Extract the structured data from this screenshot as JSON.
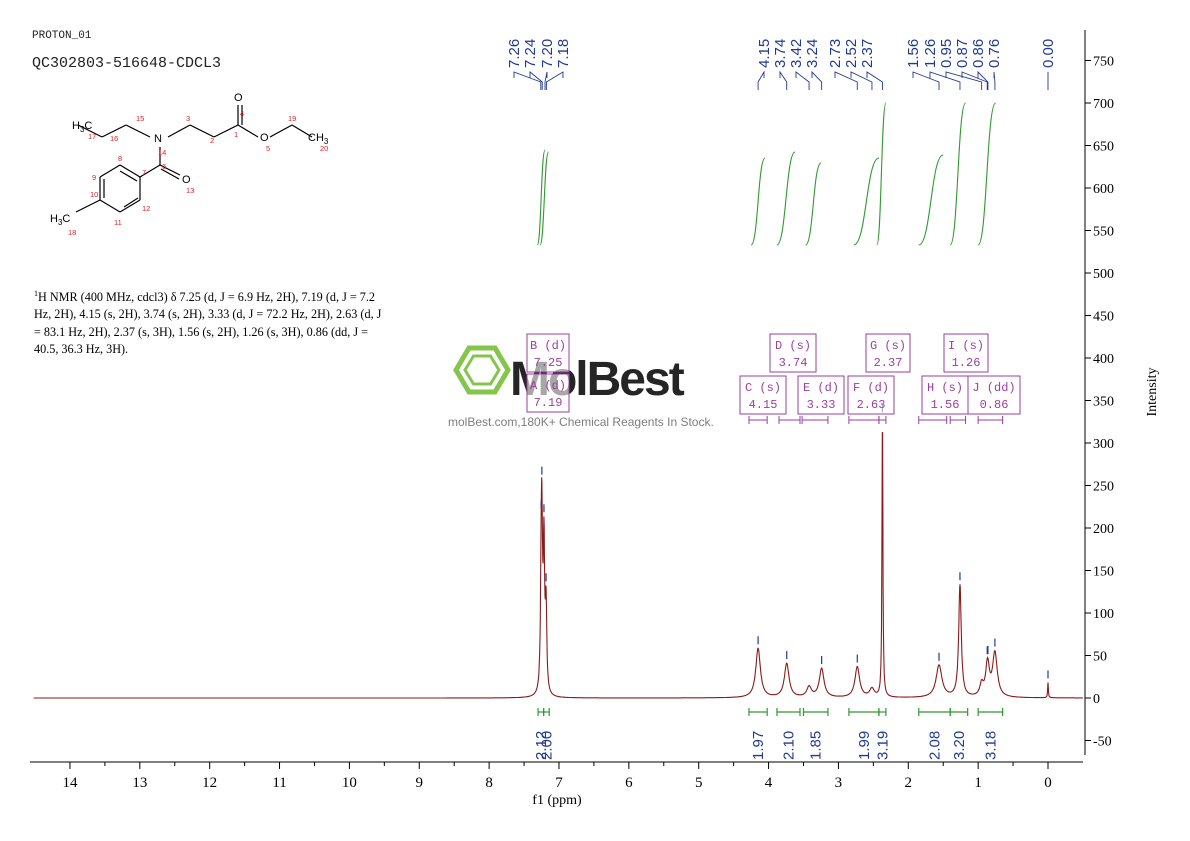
{
  "header": {
    "line1": "PROTON_01",
    "line2": "QC302803-516648-CDCL3"
  },
  "structure": {
    "atoms": [
      "H3C",
      "17",
      "16",
      "15",
      "N",
      "14",
      "3",
      "2",
      "1",
      "O",
      "4",
      "O",
      "5",
      "19",
      "CH3",
      "20",
      "O",
      "13",
      "6",
      "7",
      "8",
      "9",
      "10",
      "11",
      "12",
      "H3C",
      "18"
    ]
  },
  "nmr_description": {
    "sup": "1",
    "text": "H NMR (400 MHz, cdcl3) δ 7.25 (d, J = 6.9 Hz, 2H), 7.19 (d, J = 7.2 Hz, 2H), 4.15 (s, 2H), 3.74 (s, 2H), 3.33 (d, J = 72.2 Hz, 2H), 2.63 (d, J = 83.1 Hz, 2H), 2.37 (s, 3H), 1.56 (s, 2H), 1.26 (s, 3H), 0.86 (dd, J = 40.5, 36.3 Hz, 3H)."
  },
  "watermark": {
    "brand": "MolBest",
    "tagline": "molBest.com,180K+ Chemical Reagents In Stock."
  },
  "colors": {
    "spectrum": "#8b1a1a",
    "integral": "#2e9a2e",
    "peak_labels": "#1f3a93",
    "multiplet": "#9b3fa0",
    "watermark": "#7ec242"
  },
  "chart_data": {
    "type": "line",
    "xlabel": "f1 (ppm)",
    "ylabel": "Intensity",
    "xlim": [
      14.5,
      -0.5
    ],
    "ylim": [
      -70,
      790
    ],
    "x_ticks": [
      14,
      13,
      12,
      11,
      10,
      9,
      8,
      7,
      6,
      5,
      4,
      3,
      2,
      1,
      0
    ],
    "y_ticks": [
      -50,
      0,
      50,
      100,
      150,
      200,
      250,
      300,
      350,
      400,
      450,
      500,
      550,
      600,
      650,
      700,
      750
    ],
    "peaks": [
      {
        "ppm": 7.245,
        "height": 172,
        "width": 0.012
      },
      {
        "ppm": 7.215,
        "height": 168,
        "width": 0.012
      },
      {
        "ppm": 7.255,
        "height": 100,
        "width": 0.012
      },
      {
        "ppm": 7.185,
        "height": 100,
        "width": 0.012
      },
      {
        "ppm": 4.15,
        "height": 58,
        "width": 0.04
      },
      {
        "ppm": 3.74,
        "height": 40,
        "width": 0.04
      },
      {
        "ppm": 3.42,
        "height": 12,
        "width": 0.04
      },
      {
        "ppm": 3.24,
        "height": 34,
        "width": 0.04
      },
      {
        "ppm": 2.73,
        "height": 36,
        "width": 0.04
      },
      {
        "ppm": 2.52,
        "height": 10,
        "width": 0.04
      },
      {
        "ppm": 2.37,
        "height": 330,
        "width": 0.008
      },
      {
        "ppm": 1.56,
        "height": 38,
        "width": 0.05
      },
      {
        "ppm": 1.26,
        "height": 132,
        "width": 0.022
      },
      {
        "ppm": 0.95,
        "height": 14,
        "width": 0.03
      },
      {
        "ppm": 0.87,
        "height": 22,
        "width": 0.03
      },
      {
        "ppm": 0.86,
        "height": 18,
        "width": 0.03
      },
      {
        "ppm": 0.76,
        "height": 52,
        "width": 0.04
      },
      {
        "ppm": 0.0,
        "height": 18,
        "width": 0.006
      }
    ],
    "peak_labels": [
      {
        "label": "7.26",
        "ppm": 7.26
      },
      {
        "label": "7.24",
        "ppm": 7.24
      },
      {
        "label": "7.20",
        "ppm": 7.2
      },
      {
        "label": "7.18",
        "ppm": 7.18
      },
      {
        "label": "4.15",
        "ppm": 4.15
      },
      {
        "label": "3.74",
        "ppm": 3.74
      },
      {
        "label": "3.42",
        "ppm": 3.42
      },
      {
        "label": "3.24",
        "ppm": 3.24
      },
      {
        "label": "2.73",
        "ppm": 2.73
      },
      {
        "label": "2.52",
        "ppm": 2.52
      },
      {
        "label": "2.37",
        "ppm": 2.37
      },
      {
        "label": "1.56",
        "ppm": 1.56
      },
      {
        "label": "1.26",
        "ppm": 1.26
      },
      {
        "label": "0.95",
        "ppm": 0.95
      },
      {
        "label": "0.87",
        "ppm": 0.87
      },
      {
        "label": "0.86",
        "ppm": 0.86
      },
      {
        "label": "0.76",
        "ppm": 0.76
      },
      {
        "label": "0.00",
        "ppm": 0.0
      }
    ],
    "integrals": [
      {
        "value": "2.12",
        "from": 7.3,
        "to": 7.22
      },
      {
        "value": "2.00",
        "from": 7.22,
        "to": 7.14
      },
      {
        "value": "1.97",
        "from": 4.28,
        "to": 4.02
      },
      {
        "value": "2.10",
        "from": 3.88,
        "to": 3.55
      },
      {
        "value": "1.85",
        "from": 3.5,
        "to": 3.15
      },
      {
        "value": "1.99",
        "from": 2.85,
        "to": 2.42
      },
      {
        "value": "3.19",
        "from": 2.42,
        "to": 2.32
      },
      {
        "value": "2.08",
        "from": 1.85,
        "to": 1.4
      },
      {
        "value": "3.20",
        "from": 1.4,
        "to": 1.15
      },
      {
        "value": "3.18",
        "from": 1.0,
        "to": 0.65
      }
    ],
    "multiplets": [
      {
        "label": "B (d)",
        "shift": "7.25"
      },
      {
        "label": "A (d)",
        "shift": "7.19"
      },
      {
        "label": "C (s)",
        "shift": "4.15"
      },
      {
        "label": "D (s)",
        "shift": "3.74"
      },
      {
        "label": "E (d)",
        "shift": "3.33"
      },
      {
        "label": "F (d)",
        "shift": "2.63"
      },
      {
        "label": "G (s)",
        "shift": "2.37"
      },
      {
        "label": "H (s)",
        "shift": "1.56"
      },
      {
        "label": "I (s)",
        "shift": "1.26"
      },
      {
        "label": "J (dd)",
        "shift": "0.86"
      }
    ]
  }
}
